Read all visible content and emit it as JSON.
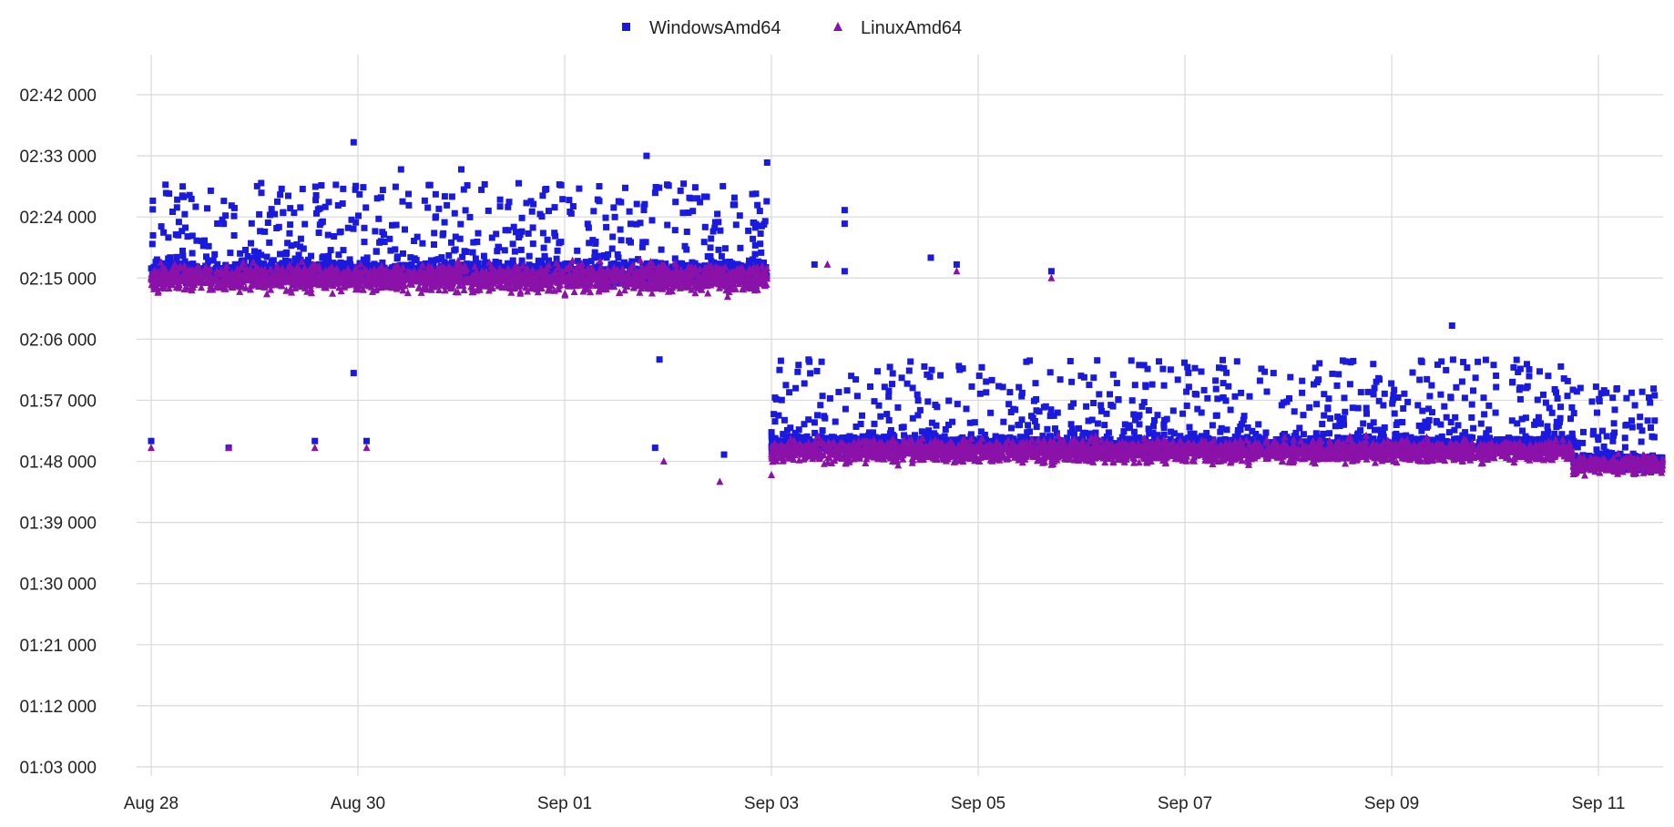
{
  "chart_data": {
    "type": "scatter",
    "title": "",
    "xlabel": "",
    "ylabel": "",
    "legend": {
      "placement": "top-center"
    },
    "grid": true,
    "x_axis": {
      "type": "date",
      "range": [
        "2023-08-28",
        "2023-09-11T15:00"
      ],
      "ticks": [
        {
          "value": "2023-08-28",
          "label": "Aug 28"
        },
        {
          "value": "2023-08-30",
          "label": "Aug 30"
        },
        {
          "value": "2023-09-01",
          "label": "Sep 01"
        },
        {
          "value": "2023-09-03",
          "label": "Sep 03"
        },
        {
          "value": "2023-09-05",
          "label": "Sep 05"
        },
        {
          "value": "2023-09-07",
          "label": "Sep 07"
        },
        {
          "value": "2023-09-09",
          "label": "Sep 09"
        },
        {
          "value": "2023-09-11",
          "label": "Sep 11"
        }
      ]
    },
    "y_axis": {
      "unit": "mm:ss fff",
      "range": [
        "01:03 000",
        "02:42 000"
      ],
      "ticks": [
        "02:42 000",
        "02:33 000",
        "02:24 000",
        "02:15 000",
        "02:06 000",
        "01:57 000",
        "01:48 000",
        "01:39 000",
        "01:30 000",
        "01:21 000",
        "01:12 000",
        "01:03 000"
      ]
    },
    "series": [
      {
        "name": "WindowsAmd64",
        "marker": "square",
        "color": "#1a1adf",
        "segments": [
          {
            "x_start": "2023-08-28T00:00",
            "x_end": "2023-09-02T23:00",
            "main_level": "02:16 000",
            "main_spread": "00:01 500",
            "upper_range": [
              "02:18 000",
              "02:29 000"
            ]
          },
          {
            "x_start": "2023-09-03T00:00",
            "x_end": "2023-09-10T18:00",
            "main_level": "01:50 500",
            "main_spread": "00:01 200",
            "upper_range": [
              "01:52 000",
              "02:03 000"
            ]
          },
          {
            "x_start": "2023-09-10T18:00",
            "x_end": "2023-09-11T15:00",
            "main_level": "01:48 000",
            "main_spread": "00:01 200",
            "upper_range": [
              "01:50 000",
              "01:59 000"
            ]
          }
        ],
        "points": [
          {
            "x": "2023-08-29T23:00",
            "y": "02:35 000"
          },
          {
            "x": "2023-08-30T10:00",
            "y": "02:31 000"
          },
          {
            "x": "2023-08-31T00:00",
            "y": "02:31 000"
          },
          {
            "x": "2023-09-01T19:00",
            "y": "02:33 000"
          },
          {
            "x": "2023-09-02T23:00",
            "y": "02:32 000"
          },
          {
            "x": "2023-08-29T23:00",
            "y": "02:01 000"
          },
          {
            "x": "2023-09-01T22:00",
            "y": "02:03 000"
          },
          {
            "x": "2023-09-03T17:00",
            "y": "02:25 000"
          },
          {
            "x": "2023-09-03T17:00",
            "y": "02:23 000"
          },
          {
            "x": "2023-09-03T10:00",
            "y": "02:17 000"
          },
          {
            "x": "2023-09-03T17:00",
            "y": "02:16 000"
          },
          {
            "x": "2023-09-04T13:00",
            "y": "02:18 000"
          },
          {
            "x": "2023-09-04T19:00",
            "y": "02:17 000"
          },
          {
            "x": "2023-09-05T17:00",
            "y": "02:16 000"
          },
          {
            "x": "2023-09-09T14:00",
            "y": "02:08 000"
          },
          {
            "x": "2023-08-28T00:00",
            "y": "01:51 000"
          },
          {
            "x": "2023-08-28T18:00",
            "y": "01:50 000"
          },
          {
            "x": "2023-08-29T14:00",
            "y": "01:51 000"
          },
          {
            "x": "2023-08-30T02:00",
            "y": "01:51 000"
          },
          {
            "x": "2023-09-01T21:00",
            "y": "01:50 000"
          },
          {
            "x": "2023-09-02T13:00",
            "y": "01:49 000"
          }
        ]
      },
      {
        "name": "LinuxAmd64",
        "marker": "triangle",
        "color": "#8a12a8",
        "segments": [
          {
            "x_start": "2023-08-28T00:00",
            "x_end": "2023-09-02T23:00",
            "main_level": "02:15 000",
            "main_spread": "00:01 800"
          },
          {
            "x_start": "2023-09-03T00:00",
            "x_end": "2023-09-10T18:00",
            "main_level": "01:49 500",
            "main_spread": "00:01 500"
          },
          {
            "x_start": "2023-09-10T18:00",
            "x_end": "2023-09-11T15:00",
            "main_level": "01:47 500",
            "main_spread": "00:01 200"
          }
        ],
        "points": [
          {
            "x": "2023-09-03T13:00",
            "y": "02:17 000"
          },
          {
            "x": "2023-09-04T19:00",
            "y": "02:16 000"
          },
          {
            "x": "2023-09-05T17:00",
            "y": "02:15 000"
          },
          {
            "x": "2023-08-28T00:00",
            "y": "01:50 000"
          },
          {
            "x": "2023-08-28T18:00",
            "y": "01:50 000"
          },
          {
            "x": "2023-08-29T14:00",
            "y": "01:50 000"
          },
          {
            "x": "2023-08-30T02:00",
            "y": "01:50 000"
          },
          {
            "x": "2023-09-01T23:00",
            "y": "01:48 000"
          },
          {
            "x": "2023-09-02T12:00",
            "y": "01:45 000"
          },
          {
            "x": "2023-09-03T00:00",
            "y": "01:46 000"
          }
        ]
      }
    ]
  }
}
